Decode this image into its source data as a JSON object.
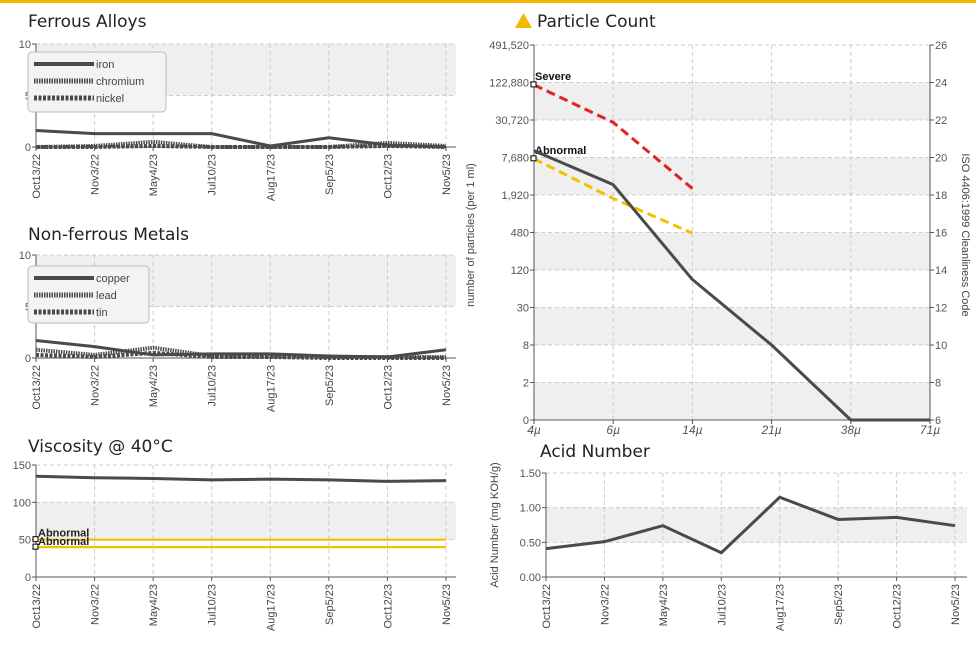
{
  "colors": {
    "accent": "#f5b800",
    "line": "#4a4a4a",
    "severe": "#e32222",
    "abnormal_yellow": "#f5c000",
    "grid": "#cccccc",
    "band": "#efefef"
  },
  "chart_data": [
    {
      "id": "ferrous",
      "type": "line",
      "title": "Ferrous Alloys",
      "x": [
        "Oct13/22",
        "Nov3/22",
        "May4/23",
        "Jul10/23",
        "Aug17/23",
        "Sep5/23",
        "Oct12/23",
        "Nov5/23"
      ],
      "ylim": [
        0,
        10
      ],
      "yticks": [
        "0",
        "5",
        "10"
      ],
      "grid": true,
      "legend": "top-left",
      "series": [
        {
          "name": "iron",
          "style": "solid",
          "values": [
            1.6,
            1.3,
            1.3,
            1.3,
            0.1,
            0.9,
            0.2,
            0.0
          ]
        },
        {
          "name": "chromium",
          "style": "dotted",
          "values": [
            0.0,
            0.1,
            0.5,
            0.0,
            0.0,
            0.0,
            0.4,
            0.1
          ]
        },
        {
          "name": "nickel",
          "style": "dashed",
          "values": [
            0.0,
            0.0,
            0.1,
            0.0,
            0.0,
            0.0,
            0.1,
            0.0
          ]
        }
      ]
    },
    {
      "id": "nonferrous",
      "type": "line",
      "title": "Non-ferrous Metals",
      "x": [
        "Oct13/22",
        "Nov3/22",
        "May4/23",
        "Jul10/23",
        "Aug17/23",
        "Sep5/23",
        "Oct12/23",
        "Nov5/23"
      ],
      "ylim": [
        0,
        10
      ],
      "yticks": [
        "0",
        "5",
        "10"
      ],
      "grid": true,
      "legend": "top-left",
      "series": [
        {
          "name": "copper",
          "style": "solid",
          "values": [
            1.7,
            1.1,
            0.3,
            0.4,
            0.4,
            0.2,
            0.1,
            0.8
          ]
        },
        {
          "name": "lead",
          "style": "dotted",
          "values": [
            0.8,
            0.3,
            1.0,
            0.2,
            0.2,
            0.1,
            0.1,
            0.1
          ]
        },
        {
          "name": "tin",
          "style": "dashed",
          "values": [
            0.3,
            0.1,
            0.5,
            0.1,
            0.1,
            0.0,
            0.0,
            0.0
          ]
        }
      ]
    },
    {
      "id": "viscosity",
      "type": "line",
      "title": "Viscosity @ 40°C",
      "x": [
        "Oct13/22",
        "Nov3/22",
        "May4/23",
        "Jul10/23",
        "Aug17/23",
        "Sep5/23",
        "Oct12/23",
        "Nov5/23"
      ],
      "ylim": [
        0,
        150
      ],
      "yticks": [
        "0",
        "50",
        "100",
        "150"
      ],
      "grid": true,
      "series": [
        {
          "values": [
            135,
            133,
            132,
            130,
            131,
            130,
            128,
            129
          ]
        }
      ],
      "limits": [
        {
          "label": "Abnormal",
          "value": 50
        },
        {
          "label": "Abnormal",
          "value": 40
        }
      ]
    },
    {
      "id": "particles",
      "type": "line",
      "title": "Particle Count",
      "x": [
        "4µ",
        "6µ",
        "14µ",
        "21µ",
        "38µ",
        "71µ"
      ],
      "ylabel": "number of particles (per 1 ml)",
      "y2label": "ISO 4406:1999 Cleanliness Code",
      "yticks": [
        "0",
        "2",
        "8",
        "30",
        "120",
        "480",
        "1,920",
        "7,680",
        "30,720",
        "122,880",
        "491,520"
      ],
      "y2ticks": [
        "6",
        "8",
        "10",
        "12",
        "14",
        "16",
        "18",
        "20",
        "22",
        "24",
        "26"
      ],
      "scale": "log",
      "grid": true,
      "series": [
        {
          "values": [
            10500,
            3000,
            90,
            8,
            0,
            0
          ]
        }
      ],
      "limits": [
        {
          "label": "Severe",
          "values": [
            120000,
            30000,
            2600
          ]
        },
        {
          "label": "Abnormal",
          "values": [
            7800,
            1800,
            500
          ]
        }
      ]
    },
    {
      "id": "acid",
      "type": "line",
      "title": "Acid Number",
      "x": [
        "Oct13/22",
        "Nov3/22",
        "May4/23",
        "Jul10/23",
        "Aug17/23",
        "Sep5/23",
        "Oct12/23",
        "Nov5/23"
      ],
      "ylabel": "Acid Number (mg KOH/g)",
      "ylim": [
        0,
        1.5
      ],
      "yticks": [
        "0.00",
        "0.50",
        "1.00",
        "1.50"
      ],
      "grid": true,
      "series": [
        {
          "values": [
            0.41,
            0.51,
            0.74,
            0.35,
            1.15,
            0.83,
            0.86,
            0.74
          ]
        }
      ]
    }
  ]
}
